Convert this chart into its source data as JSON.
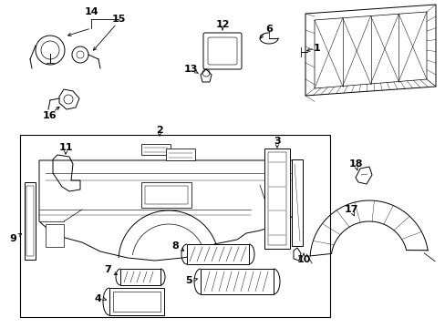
{
  "bg_color": "#ffffff",
  "fig_width": 4.89,
  "fig_height": 3.6,
  "dpi": 100,
  "lw": 0.7,
  "font_size": 8.0
}
